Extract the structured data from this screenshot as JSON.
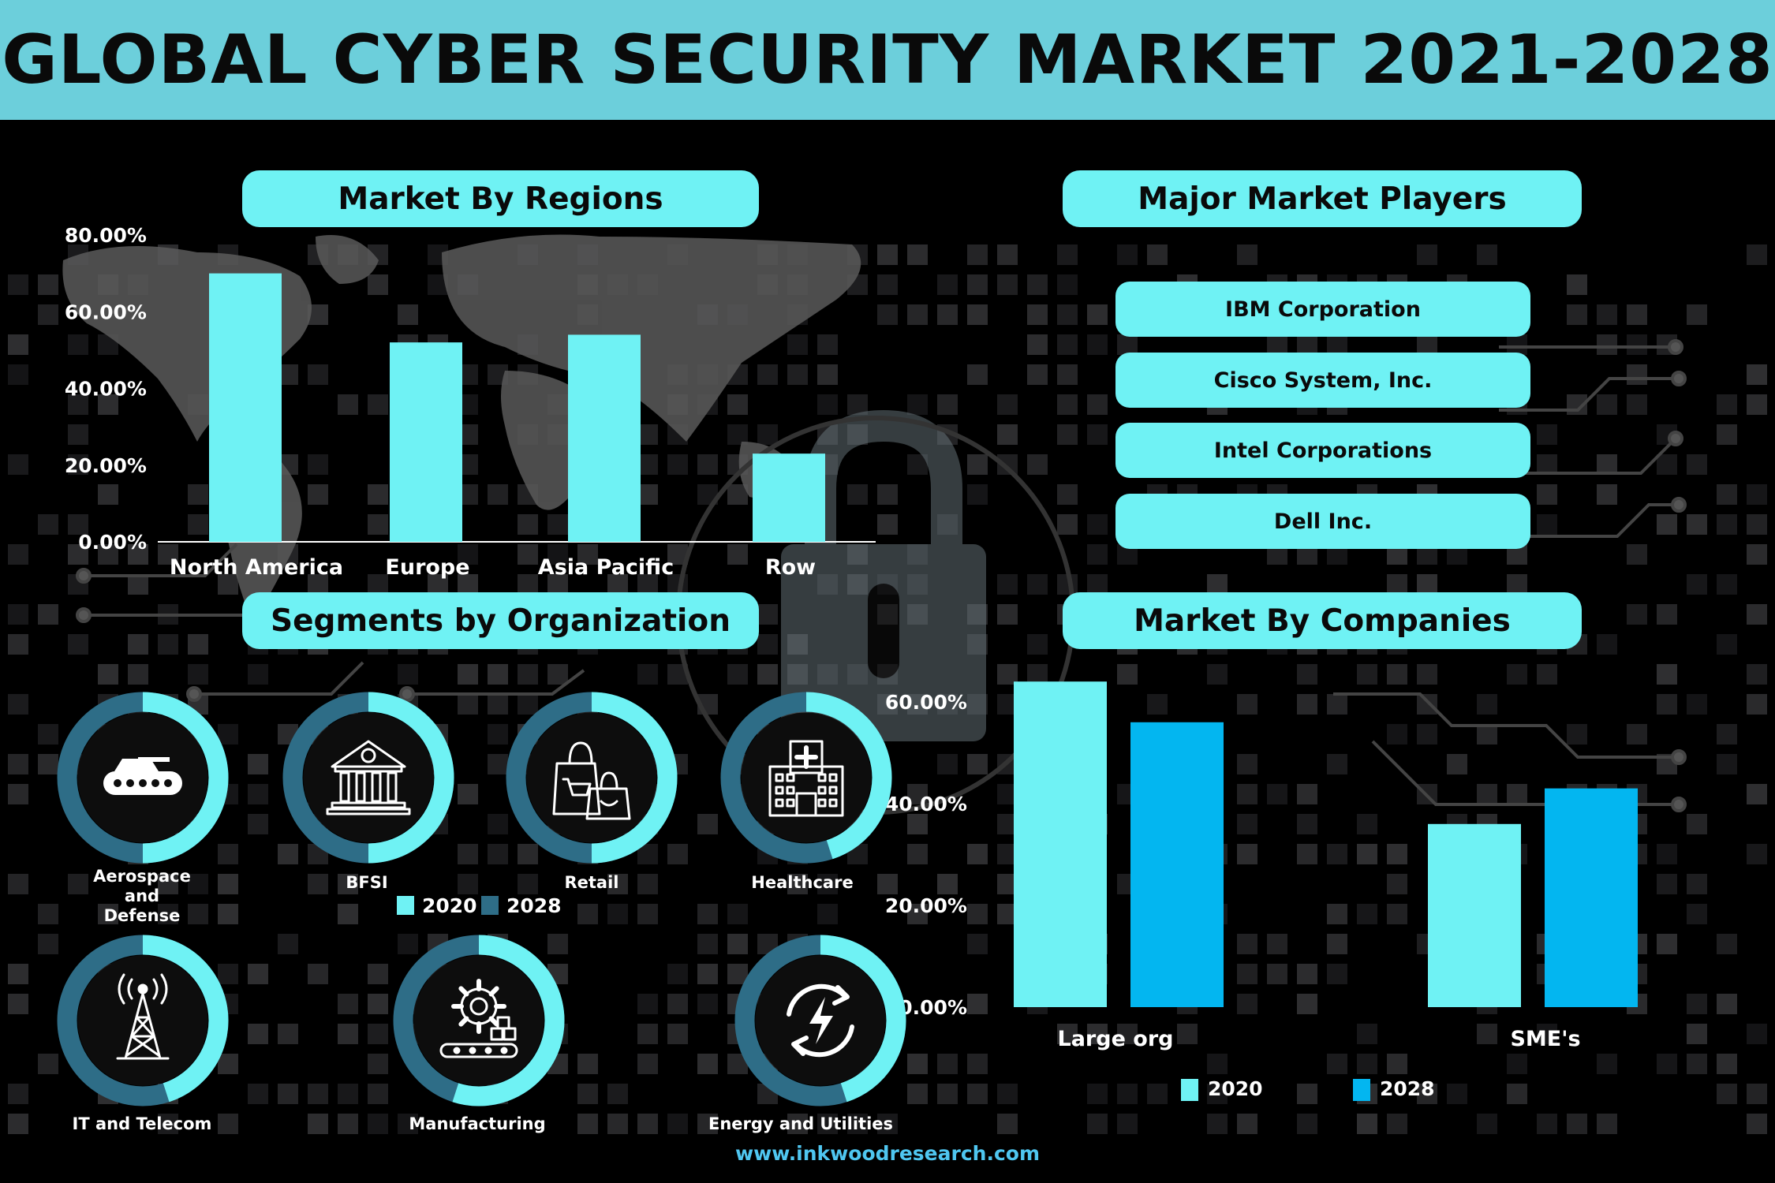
{
  "title": "GLOBAL CYBER SECURITY MARKET 2021-2028",
  "sections": {
    "regions": "Market By Regions",
    "players": "Major Market Players",
    "segments": "Segments by Organization",
    "companies": "Market By Companies"
  },
  "players": [
    "IBM Corporation",
    "Cisco System, Inc.",
    "Intel Corporations",
    "Dell Inc."
  ],
  "segments": {
    "items": [
      {
        "label": "Aerospace and Defense",
        "label_lines": [
          "Aerospace",
          "and",
          "Defense"
        ],
        "icon": "tank-icon",
        "share_2020": 0.5
      },
      {
        "label": "BFSI",
        "label_lines": [
          "BFSI"
        ],
        "icon": "bank-icon",
        "share_2020": 0.5
      },
      {
        "label": "Retail",
        "label_lines": [
          "Retail"
        ],
        "icon": "shopping-bags-icon",
        "share_2020": 0.5
      },
      {
        "label": "Healthcare",
        "label_lines": [
          "Healthcare"
        ],
        "icon": "hospital-icon",
        "share_2020": 0.45
      },
      {
        "label": "IT and Telecom",
        "label_lines": [
          "IT and Telecom"
        ],
        "icon": "telecom-tower-icon",
        "share_2020": 0.45
      },
      {
        "label": "Manufacturing",
        "label_lines": [
          "Manufacturing"
        ],
        "icon": "gear-conveyor-icon",
        "share_2020": 0.55
      },
      {
        "label": "Energy and Utilities",
        "label_lines": [
          "Energy and Utilities"
        ],
        "icon": "energy-cycle-icon",
        "share_2020": 0.45
      }
    ],
    "legend": [
      "2020",
      "2028"
    ],
    "colors": {
      "2020": "#6ff2f4",
      "2028": "#2e6d87"
    }
  },
  "footer": "www.inkwoodresearch.com",
  "colors": {
    "header": "#6ccfdb",
    "pill": "#6ff2f4",
    "bar_2020": "#6ff2f4",
    "bar_2028": "#03b6f0"
  },
  "chart_data": [
    {
      "type": "bar",
      "title": "Market By Regions",
      "categories": [
        "North America",
        "Europe",
        "Asia Pacific",
        "Row"
      ],
      "values": [
        70,
        52,
        54,
        23
      ],
      "ylim": [
        0,
        80
      ],
      "yticks": [
        "0.00%",
        "20.00%",
        "40.00%",
        "60.00%",
        "80.00%"
      ],
      "ytick_values": [
        0,
        20,
        40,
        60,
        80
      ],
      "grid": false
    },
    {
      "type": "bar",
      "title": "Market By Companies",
      "categories": [
        "Large org",
        "SME's"
      ],
      "series": [
        {
          "name": "2020",
          "values": [
            64,
            36
          ]
        },
        {
          "name": "2028",
          "values": [
            56,
            43
          ]
        }
      ],
      "ylim": [
        0,
        60
      ],
      "yticks": [
        "0.00%",
        "20.00%",
        "40.00%",
        "60.00%"
      ],
      "ytick_values": [
        0,
        20,
        40,
        60
      ],
      "legend": "bottom",
      "grid": false
    }
  ]
}
